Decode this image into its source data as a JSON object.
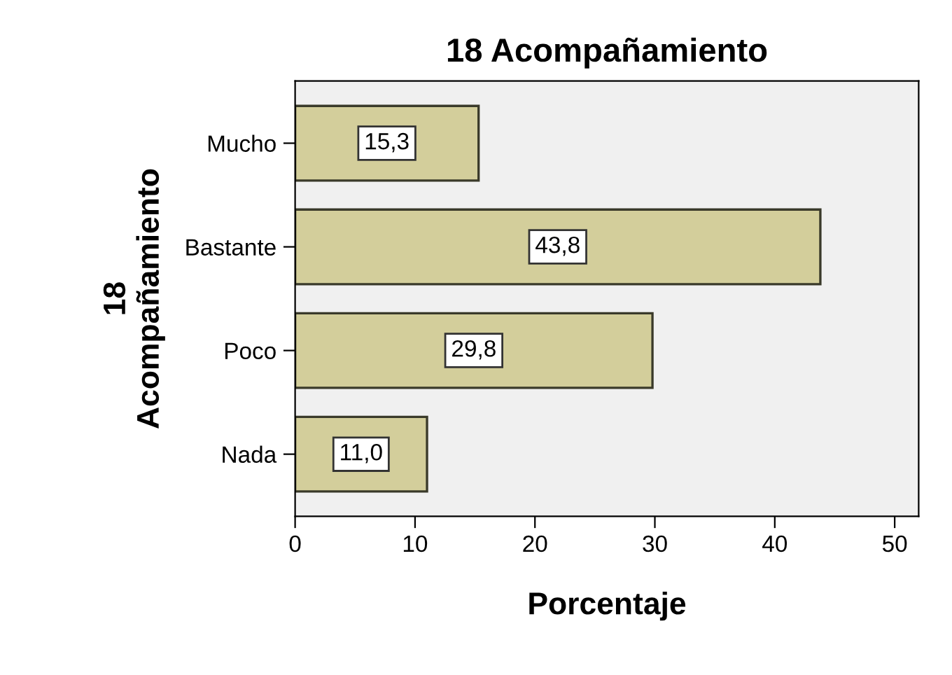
{
  "chart_data": {
    "type": "bar",
    "orientation": "horizontal",
    "title": "18 Acompañamiento",
    "xlabel": "Porcentaje",
    "ylabel": "18\nAcompañamiento",
    "categories": [
      "Mucho",
      "Bastante",
      "Poco",
      "Nada"
    ],
    "values": [
      15.3,
      43.8,
      29.8,
      11.0
    ],
    "value_labels": [
      "15,3",
      "43,8",
      "29,8",
      "11,0"
    ],
    "color": "#d3ce9b",
    "xlim": [
      0,
      52
    ],
    "xticks": [
      0,
      10,
      20,
      30,
      40,
      50
    ],
    "grid": false
  }
}
